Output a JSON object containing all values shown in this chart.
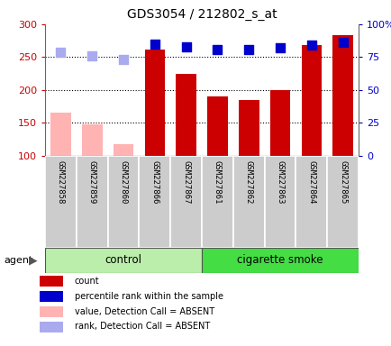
{
  "title": "GDS3054 / 212802_s_at",
  "samples": [
    "GSM227858",
    "GSM227859",
    "GSM227860",
    "GSM227866",
    "GSM227867",
    "GSM227861",
    "GSM227862",
    "GSM227863",
    "GSM227864",
    "GSM227865"
  ],
  "count_values": [
    165,
    148,
    117,
    262,
    224,
    190,
    185,
    200,
    268,
    283
  ],
  "absent_flags": [
    true,
    true,
    true,
    false,
    false,
    false,
    false,
    false,
    false,
    false
  ],
  "percentile_values": [
    79,
    76,
    73,
    85,
    83,
    81,
    81,
    82,
    84,
    86
  ],
  "ylim_left": [
    100,
    300
  ],
  "ylim_right": [
    0,
    100
  ],
  "yticks_left": [
    100,
    150,
    200,
    250,
    300
  ],
  "ytick_labels_left": [
    "100",
    "150",
    "200",
    "250",
    "300"
  ],
  "yticks_right": [
    0,
    25,
    50,
    75,
    100
  ],
  "ytick_labels_right": [
    "0",
    "25",
    "50",
    "75",
    "100%"
  ],
  "color_bar_present": "#cc0000",
  "color_bar_absent": "#ffb3b3",
  "color_dot_present": "#0000cc",
  "color_dot_absent": "#aaaaee",
  "n_control": 5,
  "n_smoke": 5,
  "agent_label": "agent",
  "control_label": "control",
  "smoke_label": "cigarette smoke",
  "legend_items": [
    {
      "color": "#cc0000",
      "label": "count"
    },
    {
      "color": "#0000cc",
      "label": "percentile rank within the sample"
    },
    {
      "color": "#ffb3b3",
      "label": "value, Detection Call = ABSENT"
    },
    {
      "color": "#aaaaee",
      "label": "rank, Detection Call = ABSENT"
    }
  ],
  "bar_width": 0.65,
  "dot_size": 55,
  "background_color": "#ffffff",
  "plot_bg_color": "#ffffff",
  "xticklabel_area_color": "#cccccc",
  "agent_row_color_control": "#bbeeaa",
  "agent_row_color_smoke": "#44dd44",
  "grid_color": "black",
  "grid_linestyle": "dotted",
  "grid_linewidth": 0.8
}
